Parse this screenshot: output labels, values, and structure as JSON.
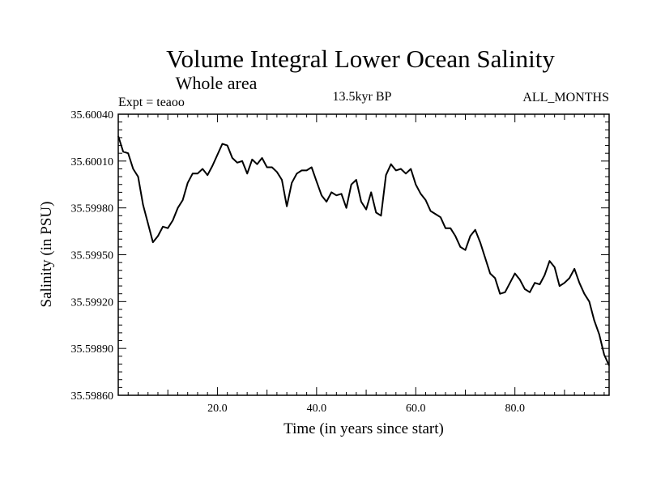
{
  "chart_data": {
    "type": "line",
    "title": "Volume Integral Lower Ocean Salinity",
    "subtitle": "Whole area",
    "experiment": "Expt = teaoo",
    "period": "13.5kyr BP",
    "months": "ALL_MONTHS",
    "xlabel": "Time (in years since start)",
    "ylabel": "Salinity (in PSU)",
    "xlim": [
      0,
      99
    ],
    "ylim": [
      35.5986,
      35.6004
    ],
    "xticks": [
      20,
      40,
      60,
      80
    ],
    "xtick_labels": [
      "20.0",
      "40.0",
      "60.0",
      "80.0"
    ],
    "yticks": [
      35.5986,
      35.5989,
      35.5992,
      35.5995,
      35.5998,
      35.6001,
      35.6004
    ],
    "ytick_labels": [
      "35.59860",
      "35.59890",
      "35.59920",
      "35.59950",
      "35.59980",
      "35.60010",
      "35.60040"
    ],
    "grid": false,
    "series": [
      {
        "name": "salinity",
        "x": [
          0,
          1,
          2,
          3,
          4,
          5,
          6,
          7,
          8,
          9,
          10,
          11,
          12,
          13,
          14,
          15,
          16,
          17,
          18,
          19,
          20,
          21,
          22,
          23,
          24,
          25,
          26,
          27,
          28,
          29,
          30,
          31,
          32,
          33,
          34,
          35,
          36,
          37,
          38,
          39,
          40,
          41,
          42,
          43,
          44,
          45,
          46,
          47,
          48,
          49,
          50,
          51,
          52,
          53,
          54,
          55,
          56,
          57,
          58,
          59,
          60,
          61,
          62,
          63,
          64,
          65,
          66,
          67,
          68,
          69,
          70,
          71,
          72,
          73,
          74,
          75,
          76,
          77,
          78,
          79,
          80,
          81,
          82,
          83,
          84,
          85,
          86,
          87,
          88,
          89,
          90,
          91,
          92,
          93,
          94,
          95,
          96,
          97,
          98,
          99
        ],
        "values": [
          35.60026,
          35.60016,
          35.60015,
          35.60005,
          35.6,
          35.59982,
          35.5997,
          35.59958,
          35.59962,
          35.59968,
          35.59967,
          35.59972,
          35.5998,
          35.59985,
          35.59996,
          35.60002,
          35.60002,
          35.60005,
          35.60001,
          35.60007,
          35.60014,
          35.60021,
          35.6002,
          35.60012,
          35.60009,
          35.6001,
          35.60002,
          35.60011,
          35.60008,
          35.60012,
          35.60006,
          35.60006,
          35.60003,
          35.59998,
          35.59981,
          35.59996,
          35.60002,
          35.60004,
          35.60004,
          35.60006,
          35.59997,
          35.59988,
          35.59984,
          35.5999,
          35.59988,
          35.59989,
          35.5998,
          35.59995,
          35.59998,
          35.59984,
          35.59979,
          35.5999,
          35.59977,
          35.59975,
          35.60001,
          35.60008,
          35.60004,
          35.60005,
          35.60002,
          35.60005,
          35.59995,
          35.59989,
          35.59985,
          35.59978,
          35.59976,
          35.59974,
          35.59967,
          35.59967,
          35.59962,
          35.59955,
          35.59953,
          35.59962,
          35.59966,
          35.59958,
          35.59948,
          35.59938,
          35.59935,
          35.59925,
          35.59926,
          35.59932,
          35.59938,
          35.59934,
          35.59928,
          35.59926,
          35.59932,
          35.59931,
          35.59937,
          35.59946,
          35.59942,
          35.5993,
          35.59932,
          35.59935,
          35.59941,
          35.59932,
          35.59925,
          35.5992,
          35.59908,
          35.59899,
          35.59886,
          35.59879
        ]
      }
    ]
  }
}
